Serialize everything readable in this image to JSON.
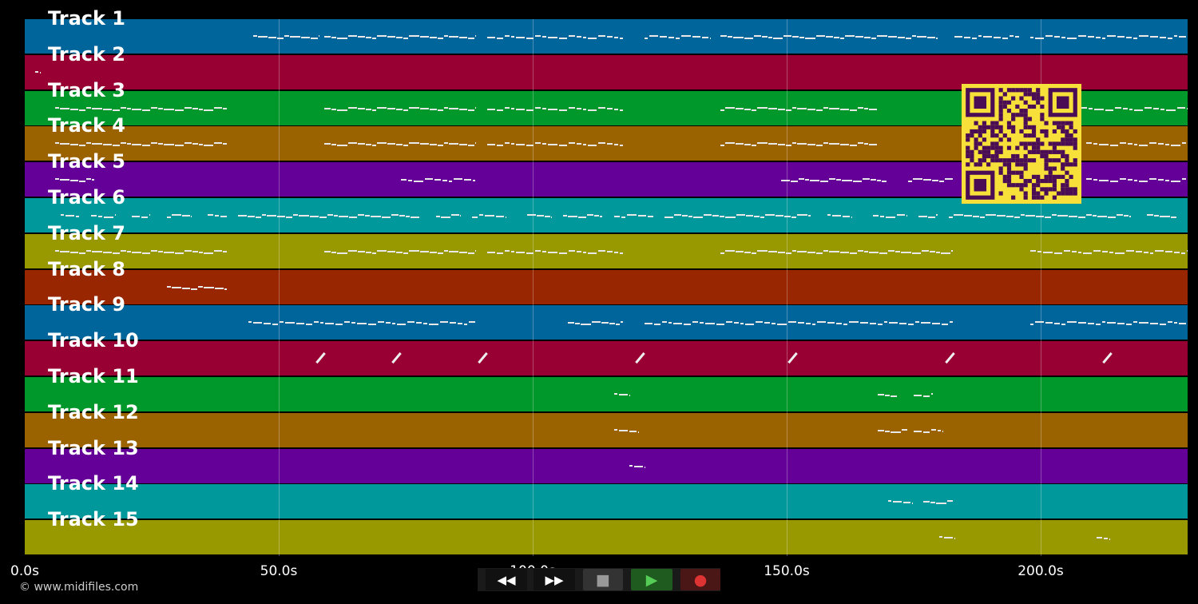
{
  "tracks": [
    {
      "name": "Track 1",
      "color": "#00659a"
    },
    {
      "name": "Track 2",
      "color": "#980033"
    },
    {
      "name": "Track 3",
      "color": "#00982a"
    },
    {
      "name": "Track 4",
      "color": "#9a6300"
    },
    {
      "name": "Track 5",
      "color": "#640098"
    },
    {
      "name": "Track 6",
      "color": "#00989a"
    },
    {
      "name": "Track 7",
      "color": "#989800"
    },
    {
      "name": "Track 8",
      "color": "#982600"
    },
    {
      "name": "Track 9",
      "color": "#00659a"
    },
    {
      "name": "Track 10",
      "color": "#980033"
    },
    {
      "name": "Track 11",
      "color": "#00982a"
    },
    {
      "name": "Track 12",
      "color": "#9a6300"
    },
    {
      "name": "Track 13",
      "color": "#640098"
    },
    {
      "name": "Track 14",
      "color": "#00989a"
    },
    {
      "name": "Track 15",
      "color": "#989800"
    }
  ],
  "timeline": {
    "start_s": 0,
    "end_s": 229,
    "ticks": [
      {
        "value": 0,
        "label": "0.0s"
      },
      {
        "value": 50,
        "label": "50.0s"
      },
      {
        "value": 100,
        "label": "100.0s"
      },
      {
        "value": 150,
        "label": "150.0s"
      },
      {
        "value": 200,
        "label": "200.0s"
      }
    ]
  },
  "notes": [
    {
      "track": 0,
      "segments": [
        [
          45,
          58
        ],
        [
          59,
          89
        ],
        [
          91,
          118
        ],
        [
          122,
          135
        ],
        [
          137,
          180
        ],
        [
          183,
          196
        ],
        [
          198,
          229
        ]
      ]
    },
    {
      "track": 1,
      "segments": [
        [
          2,
          3
        ]
      ]
    },
    {
      "track": 2,
      "segments": [
        [
          6,
          40
        ],
        [
          59,
          89
        ],
        [
          91,
          118
        ],
        [
          137,
          168
        ],
        [
          208,
          229
        ]
      ]
    },
    {
      "track": 3,
      "segments": [
        [
          6,
          40
        ],
        [
          59,
          89
        ],
        [
          91,
          118
        ],
        [
          137,
          168
        ],
        [
          209,
          229
        ]
      ]
    },
    {
      "track": 4,
      "segments": [
        [
          6,
          14
        ],
        [
          74,
          89
        ],
        [
          149,
          170
        ],
        [
          174,
          183
        ],
        [
          209,
          229
        ]
      ]
    },
    {
      "track": 5,
      "segments": [
        [
          7,
          11
        ],
        [
          13,
          18
        ],
        [
          21,
          25
        ],
        [
          28,
          33
        ],
        [
          36,
          40
        ],
        [
          42,
          78
        ],
        [
          81,
          86
        ],
        [
          88,
          95
        ],
        [
          99,
          104
        ],
        [
          106,
          114
        ],
        [
          116,
          124
        ],
        [
          126,
          155
        ],
        [
          158,
          163
        ],
        [
          167,
          174
        ],
        [
          176,
          180
        ],
        [
          182,
          218
        ],
        [
          221,
          227
        ]
      ]
    },
    {
      "track": 6,
      "segments": [
        [
          6,
          40
        ],
        [
          59,
          89
        ],
        [
          91,
          118
        ],
        [
          137,
          183
        ],
        [
          198,
          229
        ]
      ]
    },
    {
      "track": 7,
      "segments": [
        [
          28,
          40
        ]
      ]
    },
    {
      "track": 8,
      "segments": [
        [
          44,
          89
        ],
        [
          107,
          118
        ],
        [
          122,
          183
        ],
        [
          198,
          229
        ]
      ]
    },
    {
      "track": 10,
      "segments": [
        [
          116,
          119
        ],
        [
          168,
          172
        ],
        [
          175,
          179
        ]
      ]
    },
    {
      "track": 11,
      "segments": [
        [
          116,
          121
        ],
        [
          168,
          174
        ],
        [
          175,
          181
        ]
      ]
    },
    {
      "track": 12,
      "segments": [
        [
          119,
          122
        ]
      ]
    },
    {
      "track": 13,
      "segments": [
        [
          170,
          175
        ],
        [
          177,
          183
        ]
      ]
    },
    {
      "track": 14,
      "segments": [
        [
          180,
          183
        ],
        [
          211,
          214
        ]
      ]
    }
  ],
  "slash_notes": {
    "track": 9,
    "times": [
      58,
      73,
      90,
      121,
      151,
      182,
      213
    ]
  },
  "transport": {
    "buttons": [
      {
        "name": "rewind-button",
        "glyph": "◀◀",
        "bg": "#111",
        "color": "#fff"
      },
      {
        "name": "fast-forward-button",
        "glyph": "▶▶",
        "bg": "#111",
        "color": "#fff"
      },
      {
        "name": "stop-button",
        "glyph": "■",
        "bg": "#333",
        "color": "#999"
      },
      {
        "name": "play-button",
        "glyph": "▶",
        "bg": "#1f5a1f",
        "color": "#5c5"
      },
      {
        "name": "record-button",
        "glyph": "●",
        "bg": "#4a1616",
        "color": "#d33"
      }
    ]
  },
  "footer": {
    "text": "© www.midifiles.com"
  },
  "qr": {
    "fg": "#4a0c54",
    "bg": "#f8e03a"
  }
}
